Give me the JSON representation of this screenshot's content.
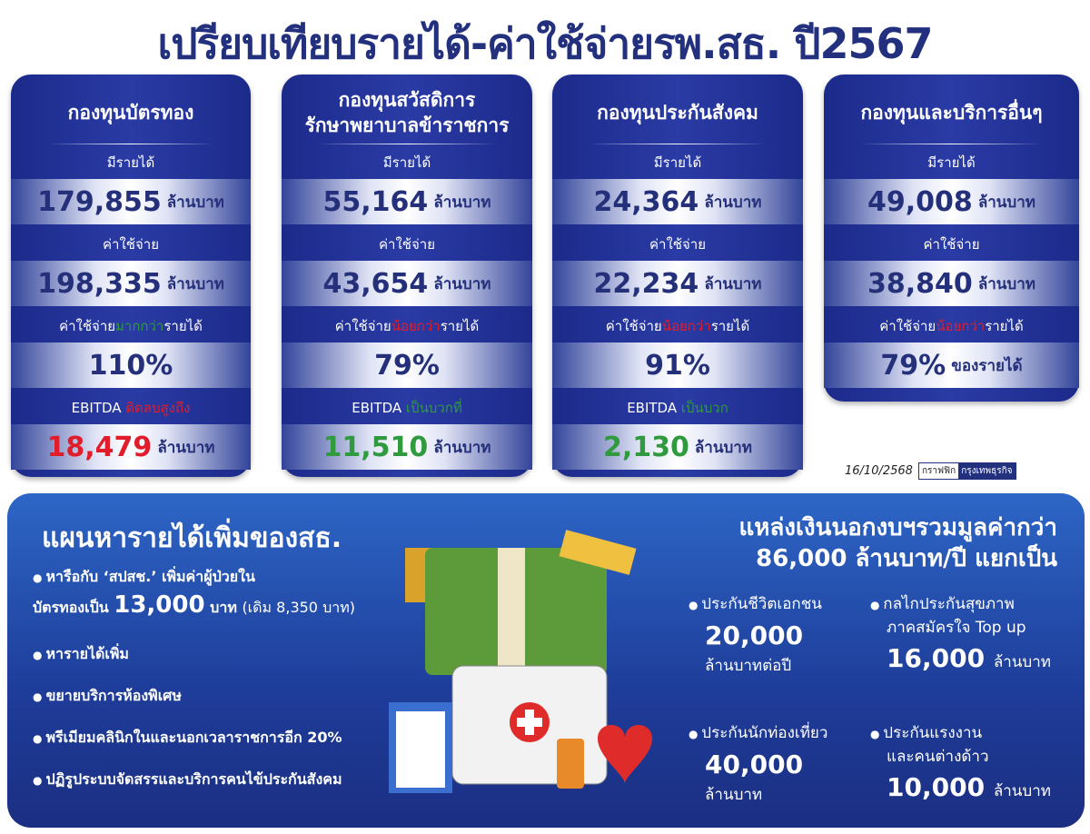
{
  "title": "เปรียบเทียบรายได้-ค่าใช้จ่ายรพ.สธ. ปี2567",
  "labels": {
    "income": "มีรายได้",
    "expense": "ค่าใช้จ่าย",
    "unit": "ล้านบาท",
    "ratio_prefix": "ค่าใช้จ่าย",
    "ratio_suffix": "รายได้",
    "ebitda": "EBITDA"
  },
  "cards": [
    {
      "name": "กองทุนบัตรทอง",
      "income": "179,855",
      "expense": "198,335",
      "ratio_word": "มากกว่า",
      "ratio": "110%",
      "ebitda_word": "ติดลบสูงถึง",
      "ebitda": "18,479"
    },
    {
      "name": "กองทุนสวัสดิการ\nรักษาพยาบาลข้าราชการ",
      "income": "55,164",
      "expense": "43,654",
      "ratio_word": "น้อยกว่า",
      "ratio": "79%",
      "ebitda_word": "เป็นบวกที่",
      "ebitda": "11,510"
    },
    {
      "name": "กองทุนประกันสังคม",
      "income": "24,364",
      "expense": "22,234",
      "ratio_word": "น้อยกว่า",
      "ratio": "91%",
      "ebitda_word": "เป็นบวก",
      "ebitda": "2,130"
    },
    {
      "name": "กองทุนและบริการอื่นๆ",
      "income": "49,008",
      "expense": "38,840",
      "ratio_word": "น้อยกว่า",
      "ratio": "79%",
      "ratio_note": "ของรายได้"
    }
  ],
  "colors": {
    "card": "#22318f",
    "title": "#22307e",
    "negative": "#e21d2b",
    "positive": "#2f9a3e"
  },
  "credit": {
    "date": "16/10/2568",
    "tag": "กราฟฟิก",
    "brand": "กรุงเทพธุรกิจ"
  },
  "plan": {
    "title": "แผนหารายได้เพิ่มของสธ.",
    "item1a": "หารือกับ ‘สปสช.’ เพิ่มค่าผู้ป่วยใน",
    "item1b": "บัตรทองเป็น",
    "item1num": "13,000",
    "item1unit": "บาท",
    "item1note": "(เดิม 8,350 บาท)",
    "items": [
      "หารายได้เพิ่ม",
      "ขยายบริการห้องพิเศษ",
      "พรีเมียมคลินิกในและนอกเวลาราชการอีก 20%",
      "ปฏิรูประบบจัดสรรและบริการคนไข้ประกันสังคม"
    ]
  },
  "sources": {
    "title1": "แหล่งเงินนอกงบฯรวมมูลค่ากว่า",
    "title2": "86,000 ล้านบาท/ปี แยกเป็น",
    "items": [
      {
        "label": "ประกันชีวิตเอกชน",
        "value": "20,000",
        "unit": "ล้านบาทต่อปี"
      },
      {
        "label": "กลไกประกันสุขภาพ",
        "label2": "ภาคสมัครใจ Top up",
        "value": "16,000",
        "unit": "ล้านบาท"
      },
      {
        "label": "ประกันนักท่องเที่ยว",
        "value": "40,000",
        "unit": "ล้านบาท"
      },
      {
        "label": "ประกันแรงงาน",
        "label2": "และคนต่างด้าว",
        "value": "10,000",
        "unit": "ล้านบาท"
      }
    ]
  }
}
